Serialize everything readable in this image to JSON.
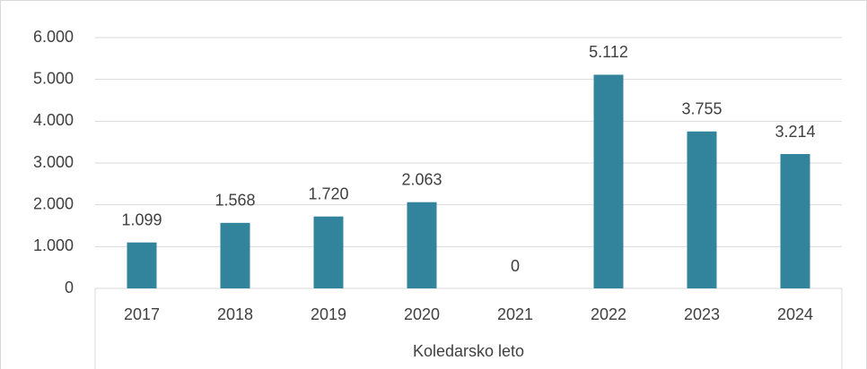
{
  "chart_data": {
    "type": "bar",
    "x_label": "Koledarsko leto",
    "categories": [
      "2017",
      "2018",
      "2019",
      "2020",
      "2021",
      "2022",
      "2023",
      "2024"
    ],
    "values": [
      1099,
      1568,
      1720,
      2063,
      0,
      5112,
      3755,
      3214
    ],
    "value_labels": [
      "1.099",
      "1.568",
      "1.720",
      "2.063",
      "0",
      "5.112",
      "3.755",
      "3.214"
    ],
    "color": "#31849b",
    "ylim": [
      0,
      6000
    ],
    "yticks": [
      0,
      {
        "value": 1000,
        "label": "1.000"
      },
      {
        "value": 2000,
        "label": "2.000"
      },
      {
        "value": 3000,
        "label": "3.000"
      },
      {
        "value": 4000,
        "label": "4.000"
      },
      {
        "value": 5000,
        "label": "5.000"
      },
      {
        "value": 6000,
        "label": "6.000"
      }
    ],
    "grid": true
  }
}
